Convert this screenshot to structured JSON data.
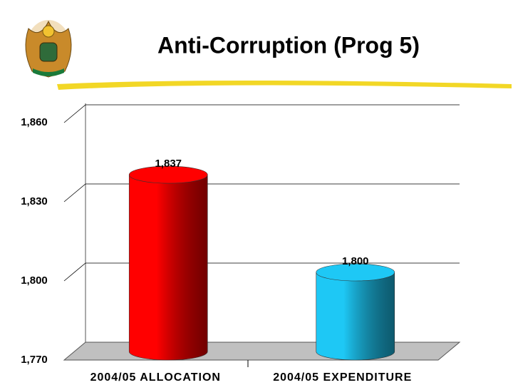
{
  "chart_data": {
    "type": "cylinder",
    "title": "Anti-Corruption (Prog 5)",
    "categories": [
      "2004/05 ALLOCATION",
      "2004/05 EXPENDITURE"
    ],
    "values": [
      1837,
      1800
    ],
    "value_labels": [
      "1,837",
      "1,800"
    ],
    "colors": [
      "#ff0000",
      "#1ec8f5"
    ],
    "ylim": [
      1770,
      1860
    ],
    "yticks": [
      {
        "value": 1770,
        "label": "1,770"
      },
      {
        "value": 1800,
        "label": "1,800"
      },
      {
        "value": 1830,
        "label": "1,830"
      },
      {
        "value": 1860,
        "label": "1,860"
      }
    ],
    "grid": true
  }
}
